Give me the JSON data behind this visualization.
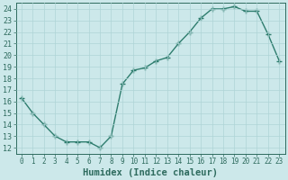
{
  "x": [
    0,
    1,
    2,
    3,
    4,
    5,
    6,
    7,
    8,
    9,
    10,
    11,
    12,
    13,
    14,
    15,
    16,
    17,
    18,
    19,
    20,
    21,
    22,
    23
  ],
  "y": [
    16.3,
    15.0,
    14.0,
    13.0,
    12.5,
    12.5,
    12.5,
    12.0,
    13.0,
    17.5,
    18.7,
    18.9,
    19.5,
    19.8,
    21.0,
    22.0,
    23.2,
    24.0,
    24.0,
    24.2,
    23.8,
    23.8,
    21.8,
    19.5
  ],
  "line_color": "#2e7d6e",
  "marker": "+",
  "marker_size": 4,
  "marker_edge_width": 1.0,
  "bg_color": "#cce8ea",
  "grid_color": "#aed4d6",
  "xlabel": "Humidex (Indice chaleur)",
  "xlim": [
    -0.5,
    23.5
  ],
  "ylim": [
    11.5,
    24.5
  ],
  "yticks": [
    12,
    13,
    14,
    15,
    16,
    17,
    18,
    19,
    20,
    21,
    22,
    23,
    24
  ],
  "xticks": [
    0,
    1,
    2,
    3,
    4,
    5,
    6,
    7,
    8,
    9,
    10,
    11,
    12,
    13,
    14,
    15,
    16,
    17,
    18,
    19,
    20,
    21,
    22,
    23
  ],
  "xtick_labels": [
    "0",
    "1",
    "2",
    "3",
    "4",
    "5",
    "6",
    "7",
    "8",
    "9",
    "10",
    "11",
    "12",
    "13",
    "14",
    "15",
    "16",
    "17",
    "18",
    "19",
    "20",
    "21",
    "22",
    "23"
  ],
  "line_width": 1.0,
  "tick_color": "#2e6b5e",
  "label_color": "#2e6b5e",
  "axis_color": "#2e6b5e",
  "xlabel_fontsize": 7.5,
  "ytick_fontsize": 6,
  "xtick_fontsize": 5.5
}
